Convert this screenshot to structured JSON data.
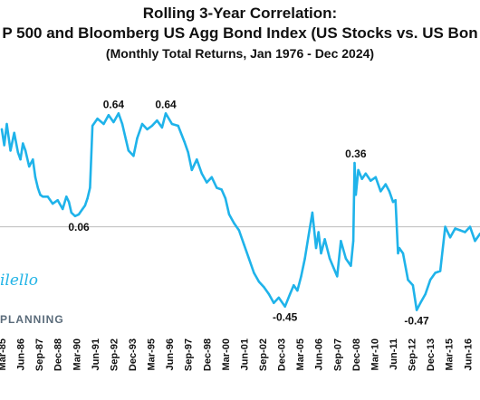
{
  "header": {
    "title": "Rolling 3-Year Correlation:",
    "subtitle": "P 500 and Bloomberg US Agg Bond Index (US Stocks vs. US Bon",
    "note": "(Monthly Total Returns, Jan 1976 - Dec 2024)"
  },
  "watermark": {
    "name": "ilello",
    "brand": "PLANNING"
  },
  "colors": {
    "line": "#1fb3ea",
    "zero_line": "#bbbbbb",
    "text": "#111111"
  },
  "chart_data": {
    "type": "line",
    "title": "Rolling 3-Year Correlation:",
    "subtitle": "P 500 and Bloomberg US Agg Bond Index (US Stocks vs. US Bon",
    "note": "(Monthly Total Returns, Jan 1976 - Dec 2024)",
    "xlabel": "",
    "ylabel": "",
    "ylim": [
      -0.62,
      0.82
    ],
    "xlim": [
      "1985-03",
      "2017-04"
    ],
    "grid": false,
    "zero_line": true,
    "x_ticks": [
      "Mar-85",
      "Jun-86",
      "Sep-87",
      "Dec-88",
      "Mar-90",
      "Jun-91",
      "Sep-92",
      "Dec-93",
      "Mar-95",
      "Jun-96",
      "Sep-97",
      "Dec-98",
      "Mar-00",
      "Jun-01",
      "Sep-02",
      "Dec-03",
      "Mar-05",
      "Jun-06",
      "Sep-07",
      "Dec-08",
      "Mar-10",
      "Jun-11",
      "Sep-12",
      "Dec-13",
      "Mar-15",
      "Jun-16"
    ],
    "annotations": [
      {
        "x": "1990-05",
        "y": 0.06,
        "label": "0.06",
        "pos": "below"
      },
      {
        "x": "1992-09",
        "y": 0.64,
        "label": "0.64",
        "pos": "above"
      },
      {
        "x": "1996-03",
        "y": 0.64,
        "label": "0.64",
        "pos": "above"
      },
      {
        "x": "2004-03",
        "y": -0.45,
        "label": "-0.45",
        "pos": "below"
      },
      {
        "x": "2008-12",
        "y": 0.36,
        "label": "0.36",
        "pos": "above"
      },
      {
        "x": "2013-01",
        "y": -0.47,
        "label": "-0.47",
        "pos": "below"
      }
    ],
    "series": [
      {
        "x": [
          "1985-03",
          "1985-05",
          "1985-07",
          "1985-10",
          "1986-01",
          "1986-04",
          "1986-06",
          "1986-08",
          "1986-10",
          "1987-01",
          "1987-04",
          "1987-06",
          "1987-08",
          "1987-09",
          "1987-10",
          "1987-12",
          "1988-04",
          "1988-08",
          "1988-12",
          "1989-04",
          "1989-07",
          "1989-09",
          "1989-11",
          "1990-02",
          "1990-05",
          "1990-08",
          "1990-10",
          "1990-12",
          "1991-02",
          "1991-04",
          "1991-08",
          "1992-01",
          "1992-05",
          "1992-09",
          "1993-01",
          "1993-04",
          "1993-07",
          "1993-09",
          "1994-01",
          "1994-04",
          "1994-08",
          "1994-12",
          "1995-04",
          "1995-08",
          "1995-12",
          "1996-03",
          "1996-08",
          "1997-01",
          "1997-06",
          "1997-09",
          "1997-12",
          "1998-04",
          "1998-08",
          "1998-12",
          "1999-04",
          "1999-08",
          "1999-12",
          "2000-03",
          "2000-06",
          "2000-10",
          "2001-02",
          "2001-06",
          "2001-10",
          "2002-02",
          "2002-06",
          "2002-10",
          "2003-02",
          "2003-06",
          "2003-10",
          "2004-03",
          "2004-07",
          "2004-10",
          "2005-01",
          "2005-04",
          "2005-07",
          "2005-10",
          "2006-01",
          "2006-04",
          "2006-06",
          "2006-08",
          "2006-11",
          "2007-03",
          "2007-06",
          "2007-09",
          "2007-12",
          "2008-04",
          "2008-08",
          "2008-10",
          "2008-11",
          "2008-12",
          "2009-02",
          "2009-05",
          "2009-08",
          "2009-12",
          "2010-04",
          "2010-08",
          "2010-12",
          "2011-03",
          "2011-06",
          "2011-08",
          "2011-10",
          "2011-11",
          "2012-02",
          "2012-06",
          "2012-10",
          "2013-01",
          "2013-04",
          "2013-08",
          "2013-12",
          "2014-04",
          "2014-08",
          "2014-12",
          "2015-04",
          "2015-08",
          "2015-12",
          "2016-04",
          "2016-08",
          "2016-12",
          "2017-04"
        ],
        "y": [
          0.55,
          0.46,
          0.58,
          0.43,
          0.53,
          0.42,
          0.38,
          0.47,
          0.43,
          0.34,
          0.38,
          0.28,
          0.22,
          0.2,
          0.18,
          0.17,
          0.17,
          0.13,
          0.15,
          0.1,
          0.17,
          0.14,
          0.08,
          0.06,
          0.07,
          0.1,
          0.12,
          0.16,
          0.22,
          0.57,
          0.61,
          0.58,
          0.63,
          0.59,
          0.64,
          0.58,
          0.49,
          0.43,
          0.4,
          0.5,
          0.58,
          0.55,
          0.57,
          0.6,
          0.56,
          0.64,
          0.58,
          0.57,
          0.48,
          0.42,
          0.32,
          0.38,
          0.3,
          0.25,
          0.28,
          0.22,
          0.21,
          0.16,
          0.07,
          0.02,
          -0.02,
          -0.1,
          -0.18,
          -0.26,
          -0.31,
          -0.34,
          -0.38,
          -0.43,
          -0.4,
          -0.45,
          -0.38,
          -0.33,
          -0.36,
          -0.28,
          -0.18,
          -0.05,
          0.08,
          -0.12,
          -0.03,
          -0.15,
          -0.07,
          -0.18,
          -0.23,
          -0.28,
          -0.08,
          -0.18,
          -0.22,
          -0.08,
          0.36,
          0.18,
          0.32,
          0.27,
          0.3,
          0.26,
          0.28,
          0.2,
          0.24,
          0.2,
          0.14,
          0.15,
          -0.15,
          -0.12,
          -0.15,
          -0.3,
          -0.33,
          -0.47,
          -0.43,
          -0.38,
          -0.3,
          -0.26,
          -0.25,
          0.0,
          -0.06,
          -0.01,
          -0.02,
          -0.03,
          0.0,
          -0.08,
          -0.04
        ]
      }
    ]
  }
}
